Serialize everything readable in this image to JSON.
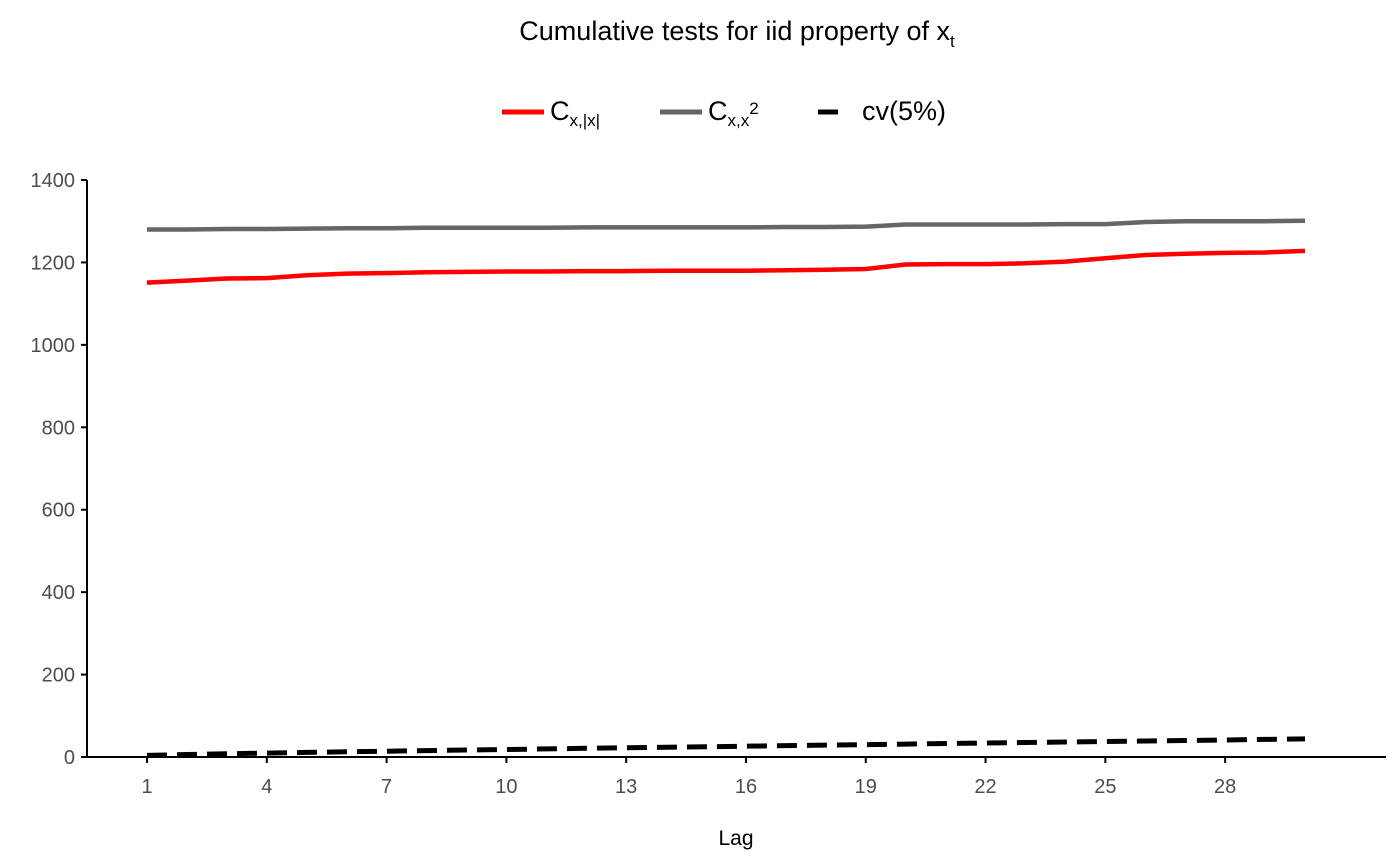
{
  "chart_data": {
    "type": "line",
    "title": {
      "main": "Cumulative tests for iid property of x",
      "sub": "t"
    },
    "xlabel": "Lag",
    "ylabel": "",
    "xlim": [
      1,
      30
    ],
    "ylim": [
      0,
      1400
    ],
    "x_ticks": [
      1,
      4,
      7,
      10,
      13,
      16,
      19,
      22,
      25,
      28
    ],
    "y_ticks": [
      0,
      200,
      400,
      600,
      800,
      1000,
      1200,
      1400
    ],
    "grid": false,
    "legend_position": "top",
    "x": [
      1,
      2,
      3,
      4,
      5,
      6,
      7,
      8,
      9,
      10,
      11,
      12,
      13,
      14,
      15,
      16,
      17,
      18,
      19,
      20,
      21,
      22,
      23,
      24,
      25,
      26,
      27,
      28,
      29,
      30
    ],
    "series": [
      {
        "key": "c_abs",
        "name": {
          "base": "C",
          "sub": "x,|x|"
        },
        "color": "#ff0000",
        "dash": "solid",
        "values": [
          1151,
          1156,
          1161,
          1162,
          1169,
          1173,
          1174,
          1176,
          1177,
          1178,
          1178,
          1179,
          1179,
          1180,
          1180,
          1180,
          1181,
          1182,
          1184,
          1195,
          1196,
          1196,
          1198,
          1202,
          1210,
          1218,
          1221,
          1223,
          1224,
          1228
        ]
      },
      {
        "key": "c_sq",
        "name": {
          "base": "C",
          "sub": "x,x",
          "sup": "2"
        },
        "color": "#666666",
        "dash": "solid",
        "values": [
          1280,
          1280,
          1281,
          1281,
          1282,
          1283,
          1283,
          1284,
          1284,
          1284,
          1284,
          1285,
          1285,
          1285,
          1285,
          1285,
          1286,
          1286,
          1287,
          1292,
          1292,
          1292,
          1292,
          1293,
          1293,
          1298,
          1300,
          1300,
          1300,
          1301
        ]
      },
      {
        "key": "cv",
        "name": {
          "base": "cv(5%)"
        },
        "color": "#000000",
        "dash": "dashed",
        "values": [
          3.8,
          6.0,
          7.8,
          9.5,
          11.1,
          12.6,
          14.1,
          15.5,
          16.9,
          18.3,
          19.7,
          21.0,
          22.4,
          23.7,
          25.0,
          26.3,
          27.6,
          28.9,
          30.1,
          31.4,
          32.7,
          33.9,
          35.2,
          36.4,
          37.7,
          38.9,
          40.1,
          41.3,
          42.6,
          43.8
        ]
      }
    ]
  }
}
